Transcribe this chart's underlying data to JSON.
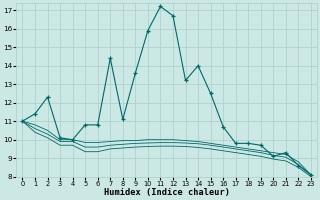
{
  "xlabel": "Humidex (Indice chaleur)",
  "bg_color": "#cce8e5",
  "grid_color": "#aacfcc",
  "line_color": "#006868",
  "xlim": [
    -0.5,
    23.5
  ],
  "ylim": [
    8,
    17.4
  ],
  "xticks": [
    0,
    1,
    2,
    3,
    4,
    5,
    6,
    7,
    8,
    9,
    10,
    11,
    12,
    13,
    14,
    15,
    16,
    17,
    18,
    19,
    20,
    21,
    22,
    23
  ],
  "yticks": [
    8,
    9,
    10,
    11,
    12,
    13,
    14,
    15,
    16,
    17
  ],
  "series": [
    {
      "x": [
        0,
        1,
        2,
        3,
        4,
        5,
        6,
        7,
        8,
        9,
        10,
        11,
        12,
        13,
        14,
        15,
        16,
        17,
        18,
        19,
        20,
        21,
        22,
        23
      ],
      "y": [
        11,
        11.4,
        12.3,
        10.1,
        10.0,
        10.8,
        10.8,
        14.4,
        11.1,
        13.6,
        15.9,
        17.2,
        16.7,
        13.2,
        14.0,
        12.5,
        10.7,
        9.8,
        9.8,
        9.7,
        9.1,
        9.3,
        8.6,
        8.1
      ],
      "marker": true
    },
    {
      "x": [
        0,
        1,
        2,
        3,
        4,
        5,
        6,
        7,
        8,
        9,
        10,
        11,
        12,
        13,
        14,
        15,
        16,
        17,
        18,
        19,
        20,
        21,
        22,
        23
      ],
      "y": [
        11.0,
        10.8,
        10.5,
        10.0,
        10.0,
        9.85,
        9.85,
        9.9,
        9.95,
        9.95,
        10.0,
        10.0,
        10.0,
        9.95,
        9.9,
        9.8,
        9.7,
        9.6,
        9.5,
        9.4,
        9.3,
        9.2,
        8.8,
        8.1
      ],
      "marker": false
    },
    {
      "x": [
        0,
        1,
        2,
        3,
        4,
        5,
        6,
        7,
        8,
        9,
        10,
        11,
        12,
        13,
        14,
        15,
        16,
        17,
        18,
        19,
        20,
        21,
        22,
        23
      ],
      "y": [
        11.0,
        10.6,
        10.3,
        9.9,
        9.9,
        9.6,
        9.6,
        9.7,
        9.75,
        9.8,
        9.82,
        9.84,
        9.84,
        9.82,
        9.78,
        9.7,
        9.6,
        9.5,
        9.4,
        9.3,
        9.15,
        9.05,
        8.65,
        8.1
      ],
      "marker": false
    },
    {
      "x": [
        0,
        1,
        2,
        3,
        4,
        5,
        6,
        7,
        8,
        9,
        10,
        11,
        12,
        13,
        14,
        15,
        16,
        17,
        18,
        19,
        20,
        21,
        22,
        23
      ],
      "y": [
        11.0,
        10.4,
        10.1,
        9.7,
        9.7,
        9.35,
        9.35,
        9.5,
        9.55,
        9.6,
        9.63,
        9.65,
        9.65,
        9.63,
        9.58,
        9.5,
        9.4,
        9.3,
        9.2,
        9.1,
        8.95,
        8.85,
        8.5,
        8.0
      ],
      "marker": false
    }
  ]
}
